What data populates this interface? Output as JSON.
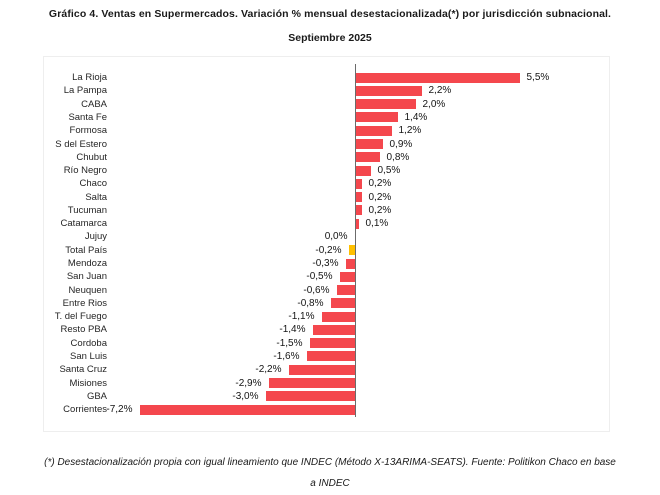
{
  "header": {
    "title": "Gráfico 4. Ventas en Supermercados. Variación % mensual desestacionalizada(*) por jurisdicción subnacional.",
    "subtitle": "Septiembre 2025"
  },
  "footnote": {
    "text": "(*) Desestacionalización propia con igual lineamiento que INDEC (Método X-13ARIMA-SEATS). Fuente: Politikon Chaco en base a INDEC"
  },
  "chart_data": {
    "type": "bar",
    "orientation": "horizontal",
    "title": "Gráfico 4. Ventas en Supermercados. Variación % mensual desestacionalizada(*) por jurisdicción subnacional.",
    "subtitle": "Septiembre 2025",
    "xlabel": "",
    "ylabel": "",
    "unit": "%",
    "xlim": [
      -7.5,
      6.2
    ],
    "grid": false,
    "legend": "none",
    "categories": [
      "La Rioja",
      "La Pampa",
      "CABA",
      "Santa Fe",
      "Formosa",
      "S del Estero",
      "Chubut",
      "Río Negro",
      "Chaco",
      "Salta",
      "Tucuman",
      "Catamarca",
      "Jujuy",
      "Total País",
      "Mendoza",
      "San Juan",
      "Neuquen",
      "Entre Rios",
      "T. del Fuego",
      "Resto PBA",
      "Cordoba",
      "San Luis",
      "Santa Cruz",
      "Misiones",
      "GBA",
      "Corrientes"
    ],
    "values": [
      5.5,
      2.2,
      2.0,
      1.4,
      1.2,
      0.9,
      0.8,
      0.5,
      0.2,
      0.2,
      0.2,
      0.1,
      0.0,
      -0.2,
      -0.3,
      -0.5,
      -0.6,
      -0.8,
      -1.1,
      -1.4,
      -1.5,
      -1.6,
      -2.2,
      -2.9,
      -3.0,
      -7.2
    ],
    "value_labels": [
      "5,5%",
      "2,2%",
      "2,0%",
      "1,4%",
      "1,2%",
      "0,9%",
      "0,8%",
      "0,5%",
      "0,2%",
      "0,2%",
      "0,2%",
      "0,1%",
      "0,0%",
      "-0,2%",
      "-0,3%",
      "-0,5%",
      "-0,6%",
      "-0,8%",
      "-1,1%",
      "-1,4%",
      "-1,5%",
      "-1,6%",
      "-2,2%",
      "-2,9%",
      "-3,0%",
      "-7,2%"
    ],
    "highlight_category": "Total País",
    "colors": {
      "bar": "#F4474D",
      "highlight": "#FFC000",
      "axis": "#6B6B6B"
    }
  }
}
